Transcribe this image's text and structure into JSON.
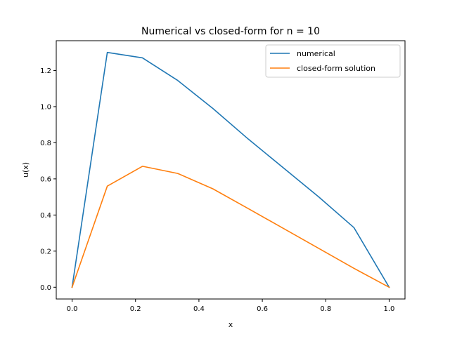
{
  "chart_data": {
    "type": "line",
    "title": "Numerical vs closed-form for n = 10",
    "xlabel": "x",
    "ylabel": "u(x)",
    "xlim": [
      -0.05,
      1.05
    ],
    "ylim": [
      -0.065,
      1.365
    ],
    "xticks": [
      0.0,
      0.2,
      0.4,
      0.6,
      0.8,
      1.0
    ],
    "xtick_labels": [
      "0.0",
      "0.2",
      "0.4",
      "0.6",
      "0.8",
      "1.0"
    ],
    "yticks": [
      0.0,
      0.2,
      0.4,
      0.6,
      0.8,
      1.0,
      1.2
    ],
    "ytick_labels": [
      "0.0",
      "0.2",
      "0.4",
      "0.6",
      "0.8",
      "1.0",
      "1.2"
    ],
    "grid": false,
    "legend_position": "top-right",
    "series": [
      {
        "name": "numerical",
        "color": "#1f77b4",
        "x": [
          0.0,
          0.111,
          0.222,
          0.333,
          0.444,
          0.556,
          0.667,
          0.778,
          0.889,
          1.0
        ],
        "y": [
          0.0,
          1.3,
          1.27,
          1.145,
          0.99,
          0.82,
          0.66,
          0.5,
          0.33,
          0.0
        ]
      },
      {
        "name": "closed-form solution",
        "color": "#ff7f0e",
        "x": [
          0.0,
          0.111,
          0.222,
          0.333,
          0.444,
          0.556,
          0.667,
          0.778,
          0.889,
          1.0
        ],
        "y": [
          0.0,
          0.56,
          0.67,
          0.63,
          0.545,
          0.435,
          0.325,
          0.215,
          0.105,
          0.0
        ]
      }
    ]
  }
}
